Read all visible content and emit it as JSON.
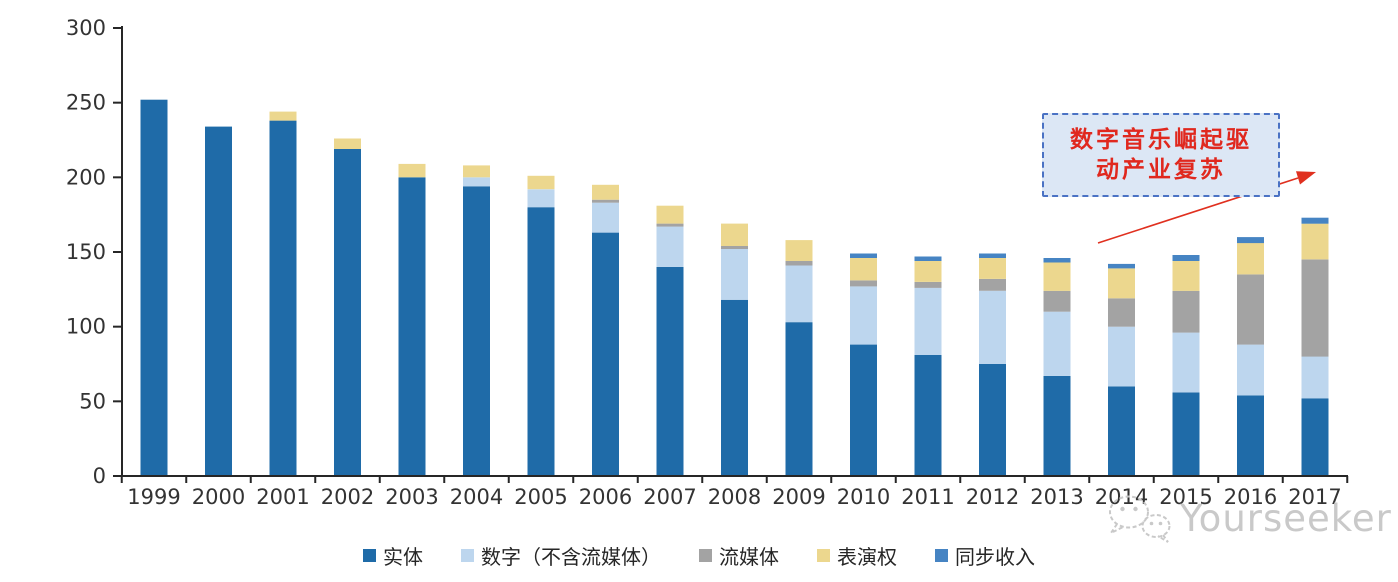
{
  "page": {
    "background": "#ffffff"
  },
  "chart_data": {
    "type": "bar",
    "stacked": true,
    "title": "",
    "xlabel": "",
    "ylabel": "",
    "categories": [
      "1999",
      "2000",
      "2001",
      "2002",
      "2003",
      "2004",
      "2005",
      "2006",
      "2007",
      "2008",
      "2009",
      "2010",
      "2011",
      "2012",
      "2013",
      "2014",
      "2015",
      "2016",
      "2017"
    ],
    "series": [
      {
        "name": "实体",
        "color": "#1F6BA8",
        "values": [
          252,
          234,
          238,
          219,
          200,
          194,
          180,
          163,
          140,
          118,
          103,
          88,
          81,
          75,
          67,
          60,
          56,
          54,
          52
        ]
      },
      {
        "name": "数字（不含流媒体）",
        "color": "#BDD6EE",
        "values": [
          0,
          0,
          0,
          0,
          0,
          6,
          12,
          20,
          27,
          34,
          38,
          39,
          45,
          49,
          43,
          40,
          40,
          34,
          28
        ]
      },
      {
        "name": "流媒体",
        "color": "#A3A3A3",
        "values": [
          0,
          0,
          0,
          0,
          0,
          0,
          0,
          2,
          2,
          2,
          3,
          4,
          4,
          8,
          14,
          19,
          28,
          47,
          65
        ]
      },
      {
        "name": "表演权",
        "color": "#ECD78E",
        "values": [
          0,
          0,
          6,
          7,
          9,
          8,
          9,
          10,
          12,
          15,
          14,
          15,
          14,
          14,
          19,
          20,
          20,
          21,
          24
        ]
      },
      {
        "name": "同步收入",
        "color": "#4684C3",
        "values": [
          0,
          0,
          0,
          0,
          0,
          0,
          0,
          0,
          0,
          0,
          0,
          3,
          3,
          3,
          3,
          3,
          4,
          4,
          4
        ]
      }
    ],
    "ylim": [
      0,
      300
    ],
    "yticks": [
      0,
      50,
      100,
      150,
      200,
      250,
      300
    ],
    "grid": false,
    "legend_position": "bottom"
  },
  "axis": {
    "line_color": "#262626",
    "text_color": "#333333"
  },
  "annotation": {
    "line1": "数字音乐崛起驱",
    "line2": "动产业复苏",
    "text_color": "#E0281E",
    "box_fill": "#DCE7F5",
    "box_border": "#4A72C4",
    "arrow_color": "#E0301F"
  },
  "watermark": {
    "text": "Yourseeker",
    "icon": "wechat-icon",
    "color": "#C7C7C7"
  }
}
